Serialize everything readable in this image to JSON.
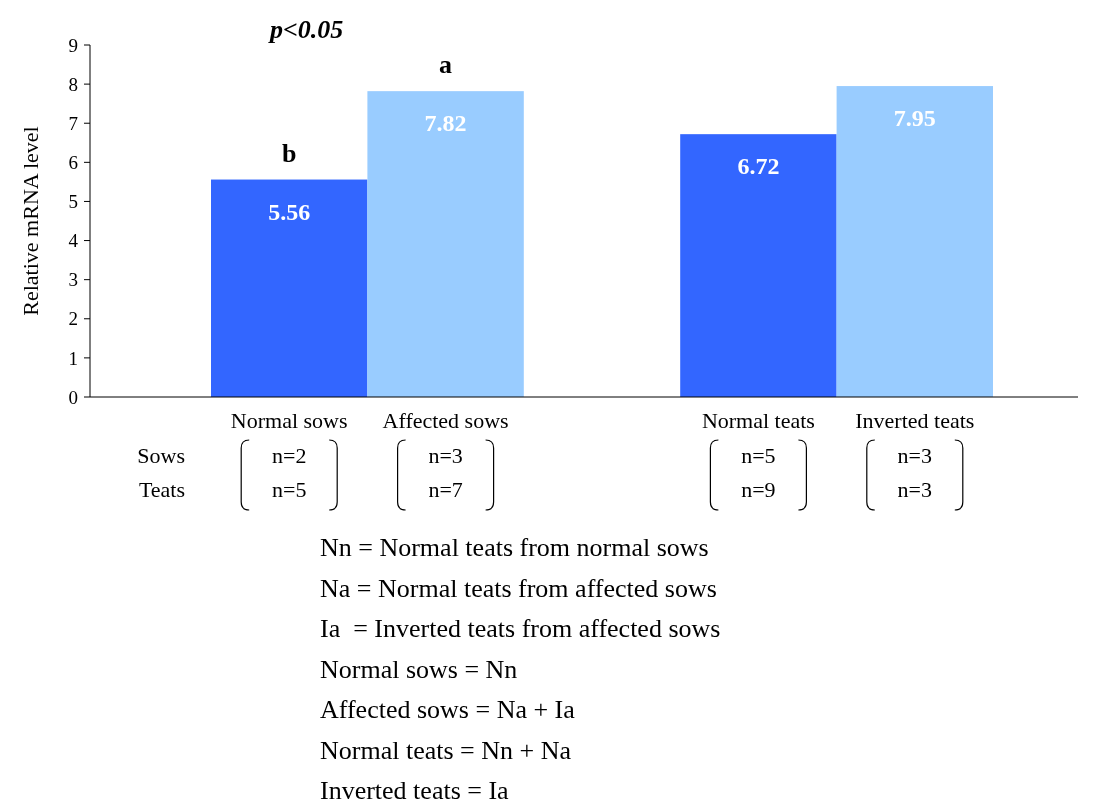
{
  "chart_data": {
    "type": "bar",
    "title": "p<0.05",
    "ylabel": "Relative mRNA level",
    "categories": [
      "Normal sows",
      "Affected sows",
      null,
      "Normal teats",
      "Inverted teats"
    ],
    "values": [
      5.56,
      7.82,
      null,
      6.72,
      7.95
    ],
    "colors": [
      "#3366ff",
      "#99ccff",
      null,
      "#3366ff",
      "#99ccff"
    ],
    "ylim": [
      0,
      9
    ],
    "yticks": [
      0,
      1,
      2,
      3,
      4,
      5,
      6,
      7,
      8,
      9
    ],
    "grid": false,
    "data_labels": true,
    "annotations": [
      {
        "text": "b",
        "x": "Normal sows",
        "y": 5.56
      },
      {
        "text": "a",
        "x": "Affected sows",
        "y": 7.82
      },
      "Sows",
      "Teats",
      "n=2",
      "n=5",
      "n=3",
      "n=7",
      "n=5",
      "n=9",
      "n=3",
      "n=3",
      "Nn = Normal teats from normal sows",
      "Na = Normal teats from affected sows",
      "Ia  = Inverted teats from affected sows",
      "Normal sows = Nn",
      "Affected sows = Na + Ia",
      "Normal teats = Nn + Na",
      "Inverted teats = Ia"
    ]
  }
}
